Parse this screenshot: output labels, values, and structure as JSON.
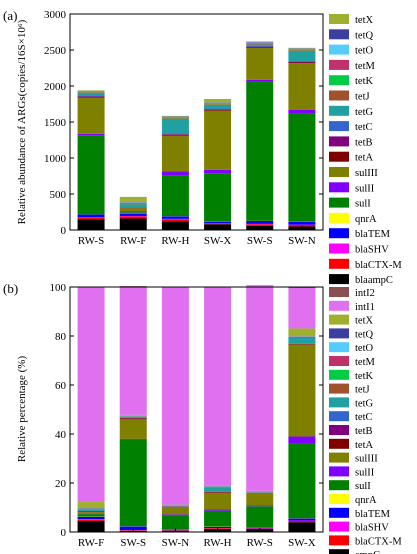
{
  "chart_data": [
    {
      "type": "bar",
      "stacked": true,
      "panel_label": "(a)",
      "ylabel": "Relative abundance of ARGs(copies/16S×10⁶)",
      "ylim": [
        0,
        3000
      ],
      "yticks": [
        0,
        500,
        1000,
        1500,
        2000,
        2500,
        3000
      ],
      "categories": [
        "RW-S",
        "RW-F",
        "RW-H",
        "SW-X",
        "SW-S",
        "SW-N"
      ],
      "legend_position": "right",
      "series": [
        {
          "name": "blaampC",
          "color": "#000000",
          "values": [
            150,
            160,
            120,
            80,
            60,
            50
          ]
        },
        {
          "name": "blaCTX-M",
          "color": "#ff0000",
          "values": [
            20,
            30,
            30,
            10,
            20,
            20
          ]
        },
        {
          "name": "blaSHV",
          "color": "#ff00ff",
          "values": [
            5,
            5,
            5,
            5,
            5,
            5
          ]
        },
        {
          "name": "blaTEM",
          "color": "#0000ff",
          "values": [
            40,
            30,
            35,
            20,
            40,
            40
          ]
        },
        {
          "name": "qnrA",
          "color": "#ffff00",
          "values": [
            2,
            2,
            2,
            2,
            2,
            2
          ]
        },
        {
          "name": "sulI",
          "color": "#008000",
          "values": [
            1100,
            20,
            560,
            670,
            1930,
            1500
          ]
        },
        {
          "name": "sulII",
          "color": "#8000ff",
          "values": [
            20,
            15,
            60,
            50,
            30,
            50
          ]
        },
        {
          "name": "sulIII",
          "color": "#808000",
          "values": [
            500,
            40,
            500,
            820,
            440,
            650
          ]
        },
        {
          "name": "tetA",
          "color": "#800000",
          "values": [
            10,
            5,
            10,
            10,
            10,
            10
          ]
        },
        {
          "name": "tetB",
          "color": "#800080",
          "values": [
            10,
            5,
            10,
            10,
            10,
            10
          ]
        },
        {
          "name": "tetC",
          "color": "#3366cc",
          "values": [
            10,
            5,
            10,
            10,
            10,
            10
          ]
        },
        {
          "name": "tetG",
          "color": "#20a0a0",
          "values": [
            30,
            40,
            200,
            50,
            20,
            140
          ]
        },
        {
          "name": "tetJ",
          "color": "#a0522d",
          "values": [
            10,
            5,
            10,
            10,
            10,
            10
          ]
        },
        {
          "name": "tetK",
          "color": "#00cc44",
          "values": [
            5,
            5,
            5,
            5,
            5,
            5
          ]
        },
        {
          "name": "tetM",
          "color": "#c0306a",
          "values": [
            10,
            10,
            10,
            10,
            10,
            10
          ]
        },
        {
          "name": "tetO",
          "color": "#55ccff",
          "values": [
            5,
            5,
            5,
            5,
            5,
            5
          ]
        },
        {
          "name": "tetQ",
          "color": "#3b3f9f",
          "values": [
            5,
            5,
            5,
            5,
            5,
            5
          ]
        },
        {
          "name": "tetX",
          "color": "#9fb030",
          "values": [
            8,
            73,
            8,
            48,
            8,
            8
          ]
        }
      ]
    },
    {
      "type": "bar",
      "stacked": true,
      "panel_label": "(b)",
      "ylabel": "Relative percentage (%)",
      "ylim": [
        0,
        100
      ],
      "yticks": [
        0,
        20,
        40,
        60,
        80,
        100
      ],
      "categories": [
        "RW-F",
        "SW-S",
        "SW-N",
        "RW-H",
        "RW-S",
        "SW-X"
      ],
      "legend_position": "right",
      "series": [
        {
          "name": "ampC",
          "color": "#000000",
          "values": [
            4.5,
            0.5,
            0.4,
            1.2,
            1.2,
            4.0
          ]
        },
        {
          "name": "blaCTX-M",
          "color": "#ff0000",
          "values": [
            0.5,
            0.2,
            0.2,
            0.3,
            0.2,
            0.5
          ]
        },
        {
          "name": "blaSHV",
          "color": "#ff00ff",
          "values": [
            0.2,
            0.1,
            0.1,
            0.1,
            0.1,
            0.2
          ]
        },
        {
          "name": "blaTEM",
          "color": "#0000ff",
          "values": [
            1.0,
            1.5,
            0.3,
            0.5,
            0.4,
            0.8
          ]
        },
        {
          "name": "qnrA",
          "color": "#ffff00",
          "values": [
            0.1,
            0.1,
            0.1,
            0.1,
            0.1,
            0.1
          ]
        },
        {
          "name": "sulI",
          "color": "#008000",
          "values": [
            1.0,
            35.2,
            5.8,
            6.5,
            8.5,
            30.7
          ]
        },
        {
          "name": "sulII",
          "color": "#8000ff",
          "values": [
            0.2,
            0.4,
            0.3,
            0.5,
            0.3,
            2.7
          ]
        },
        {
          "name": "sulIII",
          "color": "#808000",
          "values": [
            0.6,
            8.0,
            3.0,
            6.8,
            5.0,
            37.5
          ]
        },
        {
          "name": "tetA",
          "color": "#800000",
          "values": [
            0.3,
            0.4,
            0.1,
            0.3,
            0.1,
            0.2
          ]
        },
        {
          "name": "tetB",
          "color": "#800080",
          "values": [
            0.1,
            0.1,
            0.1,
            0.1,
            0.1,
            0.1
          ]
        },
        {
          "name": "tetC",
          "color": "#3366cc",
          "values": [
            0.1,
            0.1,
            0.1,
            0.1,
            0.1,
            0.1
          ]
        },
        {
          "name": "tetG",
          "color": "#20a0a0",
          "values": [
            0.7,
            0.5,
            0.1,
            1.8,
            0.1,
            2.5
          ]
        },
        {
          "name": "tetJ",
          "color": "#a0522d",
          "values": [
            0.1,
            0.1,
            0.1,
            0.1,
            0.1,
            0.2
          ]
        },
        {
          "name": "tetK",
          "color": "#00cc44",
          "values": [
            0.1,
            0.1,
            0.1,
            0.1,
            0.1,
            0.1
          ]
        },
        {
          "name": "tetM",
          "color": "#c0306a",
          "values": [
            0.1,
            0.1,
            0.1,
            0.1,
            0.1,
            0.2
          ]
        },
        {
          "name": "tetO",
          "color": "#55ccff",
          "values": [
            0.1,
            0.1,
            0.1,
            0.1,
            0.1,
            0.1
          ]
        },
        {
          "name": "tetQ",
          "color": "#3b3f9f",
          "values": [
            0.1,
            0.1,
            0.1,
            0.1,
            0.1,
            0.1
          ]
        },
        {
          "name": "tetX",
          "color": "#9fb030",
          "values": [
            2.8,
            0.2,
            0.1,
            0.2,
            0.1,
            3.0
          ]
        },
        {
          "name": "intI1",
          "color": "#e070f0",
          "values": [
            87.2,
            52.5,
            88.9,
            80.9,
            83.8,
            16.5
          ]
        },
        {
          "name": "intI2",
          "color": "#8a4f4f",
          "values": [
            0.2,
            0.1,
            0.1,
            0.2,
            0.1,
            0.3
          ]
        }
      ]
    }
  ]
}
